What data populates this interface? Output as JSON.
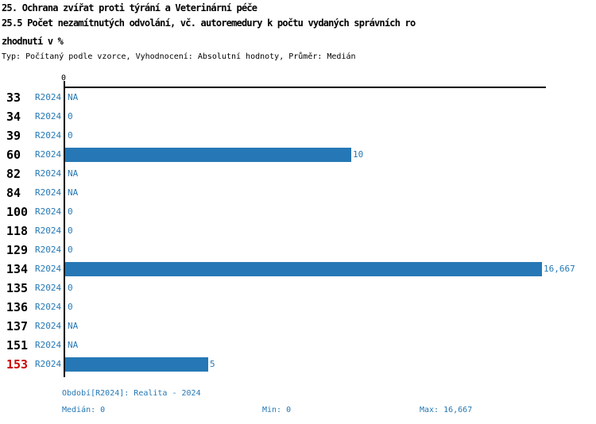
{
  "header": {
    "title_line1": "25. Ochrana zvířat proti týrání a Veterinární péče",
    "title_line2": "25.5 Počet nezamítnutých odvolání, vč. autoremedury k počtu vydaných správních ro",
    "title_line3": "zhodnutí v %",
    "subtitle": "Typ: Počítaný podle vzorce, Vyhodnocení: Absolutní hodnoty, Průměr: Medián"
  },
  "chart_data": {
    "type": "bar",
    "orientation": "horizontal",
    "title": "25.5 Počet nezamítnutých odvolání, vč. autoremedury k počtu vydaných správních rozhodnutí v %",
    "xaxis_tick": "0",
    "xlim": [
      0,
      16.86
    ],
    "grid": false,
    "legend_position": "none",
    "categories": [
      "33",
      "34",
      "39",
      "60",
      "82",
      "84",
      "100",
      "118",
      "129",
      "134",
      "135",
      "136",
      "137",
      "151",
      "153"
    ],
    "series": [
      {
        "name": "R2024",
        "values": [
          null,
          0,
          0,
          10,
          null,
          null,
          0,
          0,
          0,
          16.667,
          0,
          0,
          null,
          null,
          5
        ]
      }
    ],
    "rows": [
      {
        "label": "33",
        "period": "R2024",
        "display": "NA",
        "value": null,
        "highlight": false
      },
      {
        "label": "34",
        "period": "R2024",
        "display": "0",
        "value": 0,
        "highlight": false
      },
      {
        "label": "39",
        "period": "R2024",
        "display": "0",
        "value": 0,
        "highlight": false
      },
      {
        "label": "60",
        "period": "R2024",
        "display": "10",
        "value": 10,
        "highlight": false
      },
      {
        "label": "82",
        "period": "R2024",
        "display": "NA",
        "value": null,
        "highlight": false
      },
      {
        "label": "84",
        "period": "R2024",
        "display": "NA",
        "value": null,
        "highlight": false
      },
      {
        "label": "100",
        "period": "R2024",
        "display": "0",
        "value": 0,
        "highlight": false
      },
      {
        "label": "118",
        "period": "R2024",
        "display": "0",
        "value": 0,
        "highlight": false
      },
      {
        "label": "129",
        "period": "R2024",
        "display": "0",
        "value": 0,
        "highlight": false
      },
      {
        "label": "134",
        "period": "R2024",
        "display": "16,667",
        "value": 16.667,
        "highlight": false
      },
      {
        "label": "135",
        "period": "R2024",
        "display": "0",
        "value": 0,
        "highlight": false
      },
      {
        "label": "136",
        "period": "R2024",
        "display": "0",
        "value": 0,
        "highlight": false
      },
      {
        "label": "137",
        "period": "R2024",
        "display": "NA",
        "value": null,
        "highlight": false
      },
      {
        "label": "151",
        "period": "R2024",
        "display": "NA",
        "value": null,
        "highlight": false
      },
      {
        "label": "153",
        "period": "R2024",
        "display": "5",
        "value": 5,
        "highlight": true
      }
    ]
  },
  "footer": {
    "period_label": "Období[R2024]: Realita - 2024",
    "median_label": "Medián: 0",
    "min_label": "Min: 0",
    "max_label": "Max: 16,667"
  },
  "colors": {
    "bar_blue": "#2578b5",
    "text_blue": "#2578b5",
    "highlight_red": "#cc0000",
    "axis_black": "#000000"
  }
}
